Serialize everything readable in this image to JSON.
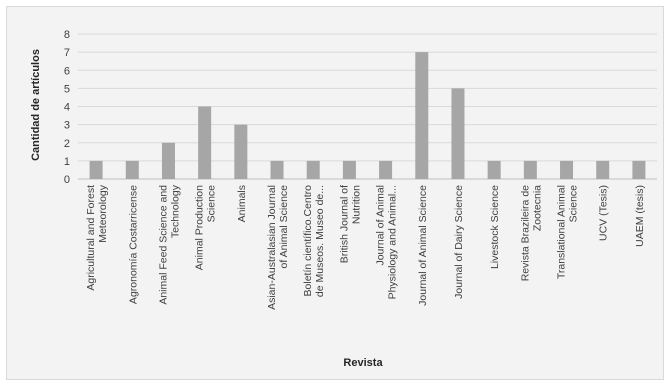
{
  "chart_data": {
    "type": "bar",
    "title": "",
    "xlabel": "Revista",
    "ylabel": "Cantidad de artículos",
    "ylim": [
      0,
      8
    ],
    "yticks": [
      0,
      1,
      2,
      3,
      4,
      5,
      6,
      7,
      8
    ],
    "grid": "horizontal",
    "legend": "none",
    "bar_color": "#a6a6a6",
    "categories": [
      [
        "Agricultural and Forest",
        "Meteorology"
      ],
      [
        "Agronomía Costarricense"
      ],
      [
        "Animal Feed Science and",
        "Technology"
      ],
      [
        "Animal Production",
        "Science"
      ],
      [
        "Animals"
      ],
      [
        "Asian-Australasian Journal",
        "of Animal Science"
      ],
      [
        "Boletín científico.Centro",
        "de Museos. Museo de..."
      ],
      [
        "British Journal of",
        "Nutrition"
      ],
      [
        "Journal of Animal",
        "Physiology and Animal..."
      ],
      [
        "Journal of Animal Science"
      ],
      [
        "Journal of Dairy Science"
      ],
      [
        "Livestock Science"
      ],
      [
        "Revista Brazileira de",
        "Zootecnia"
      ],
      [
        "Translational Animal",
        "Science"
      ],
      [
        "UCV (Tesis)"
      ],
      [
        "UAEM (tesis)"
      ]
    ],
    "values": [
      1,
      1,
      2,
      4,
      3,
      1,
      1,
      1,
      1,
      7,
      5,
      1,
      1,
      1,
      1,
      1
    ]
  }
}
